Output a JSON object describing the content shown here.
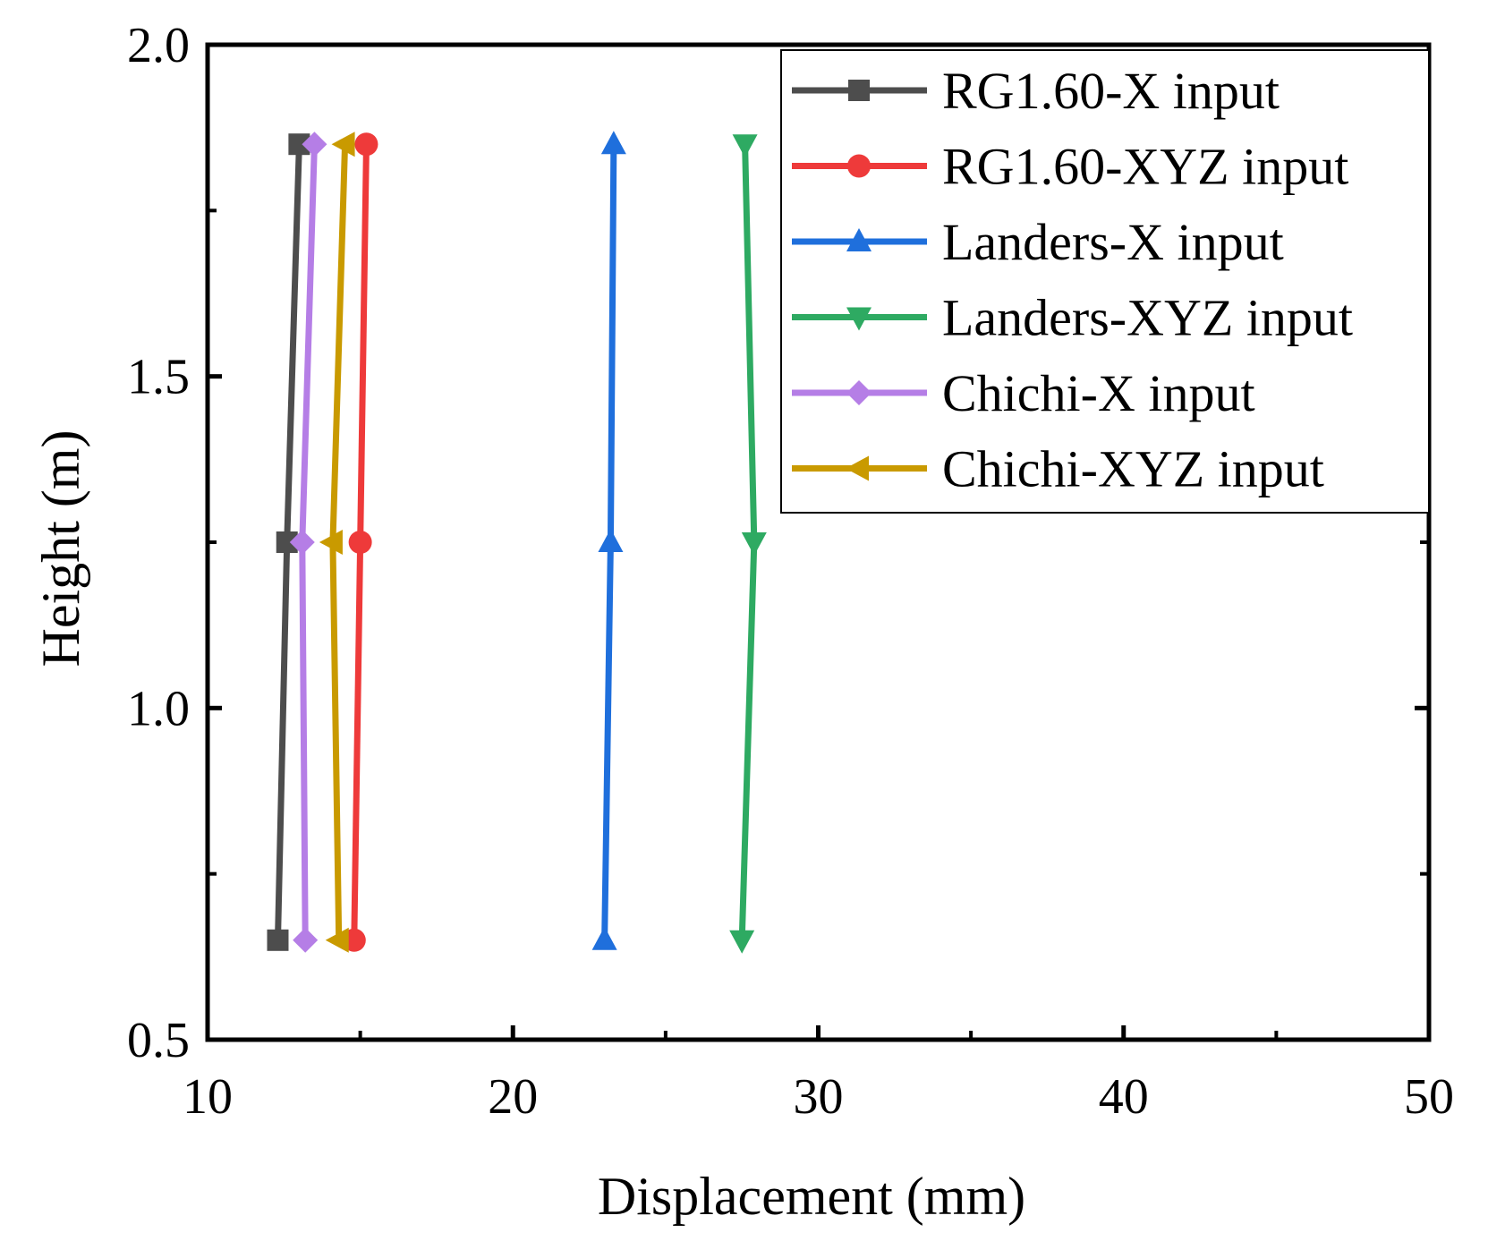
{
  "chart_data": {
    "type": "line",
    "title": "",
    "xlabel": "Displacement (mm)",
    "ylabel": "Height (m)",
    "xlim": [
      10,
      50
    ],
    "ylim": [
      0.5,
      2.0
    ],
    "xticks": [
      10,
      20,
      30,
      40,
      50
    ],
    "xtick_labels": [
      "10",
      "20",
      "30",
      "40",
      "50"
    ],
    "yticks": [
      0.5,
      1.0,
      1.5,
      2.0
    ],
    "ytick_labels": [
      "0.5",
      "1.0",
      "1.5",
      "2.0"
    ],
    "x_minor_step": 5,
    "y_minor_step": 0.25,
    "grid": false,
    "legend_position": "top-right",
    "series": [
      {
        "name": "RG1.60-X input",
        "color": "#4d4d4d",
        "marker": "square",
        "x": [
          12.3,
          12.6,
          13.0
        ],
        "y": [
          0.65,
          1.25,
          1.85
        ]
      },
      {
        "name": "RG1.60-XYZ input",
        "color": "#ee3a3a",
        "marker": "circle",
        "x": [
          14.8,
          15.0,
          15.2
        ],
        "y": [
          0.65,
          1.25,
          1.85
        ]
      },
      {
        "name": "Landers-X input",
        "color": "#1f6fdc",
        "marker": "triangle-up",
        "x": [
          23.0,
          23.2,
          23.3
        ],
        "y": [
          0.65,
          1.25,
          1.85
        ]
      },
      {
        "name": "Landers-XYZ input",
        "color": "#2eaa62",
        "marker": "triangle-down",
        "x": [
          27.5,
          27.9,
          27.6
        ],
        "y": [
          0.65,
          1.25,
          1.85
        ]
      },
      {
        "name": "Chichi-X input",
        "color": "#b57ee6",
        "marker": "diamond",
        "x": [
          13.2,
          13.1,
          13.5
        ],
        "y": [
          0.65,
          1.25,
          1.85
        ]
      },
      {
        "name": "Chichi-XYZ input",
        "color": "#c99a00",
        "marker": "triangle-left",
        "x": [
          14.3,
          14.1,
          14.5
        ],
        "y": [
          0.65,
          1.25,
          1.85
        ]
      }
    ]
  }
}
